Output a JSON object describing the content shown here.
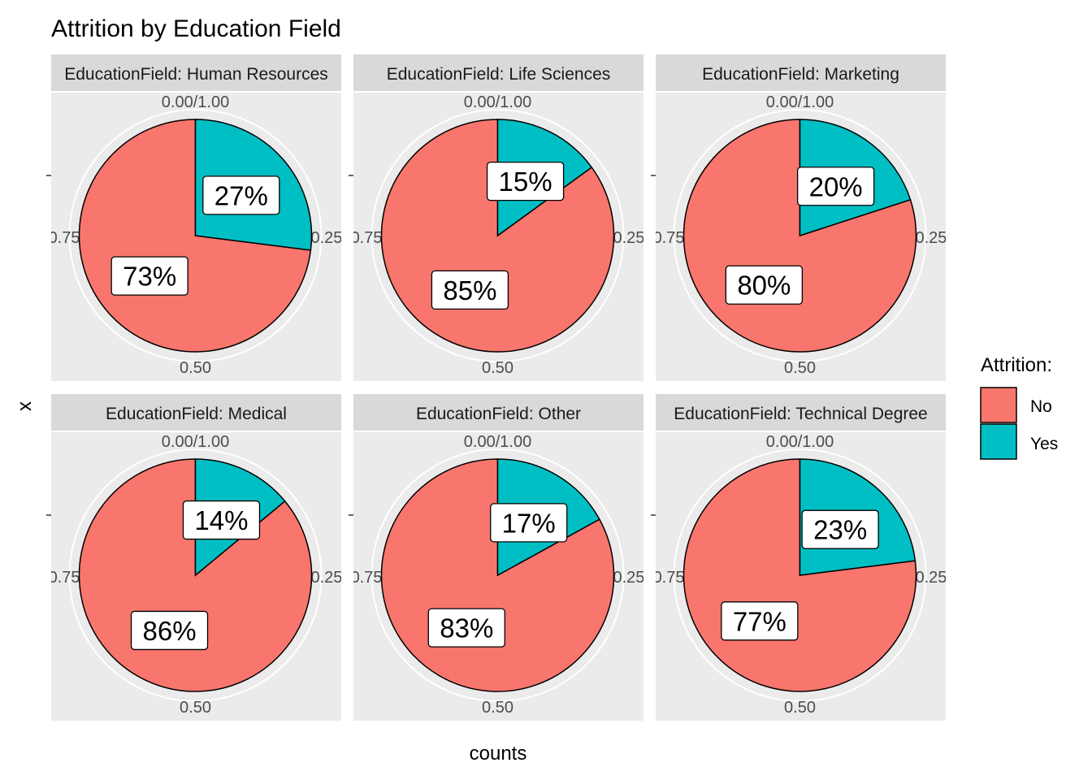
{
  "chart_data": {
    "type": "pie",
    "title": "Attrition by Education Field",
    "xlabel": "counts",
    "ylabel": "x",
    "theta_ticks": [
      "0.00/1.00",
      "0.25",
      "0.50",
      "0.75"
    ],
    "legend": {
      "title": "Attrition:",
      "position": "right",
      "entries": [
        {
          "name": "No",
          "color": "#F8766D"
        },
        {
          "name": "Yes",
          "color": "#00BFC4"
        }
      ]
    },
    "categories": [
      "No",
      "Yes"
    ],
    "facets": [
      {
        "strip": "EducationField: Human Resources",
        "values": [
          73,
          27
        ],
        "labels": [
          "73%",
          "27%"
        ]
      },
      {
        "strip": "EducationField: Life Sciences",
        "values": [
          85,
          15
        ],
        "labels": [
          "85%",
          "15%"
        ]
      },
      {
        "strip": "EducationField: Marketing",
        "values": [
          80,
          20
        ],
        "labels": [
          "80%",
          "20%"
        ]
      },
      {
        "strip": "EducationField: Medical",
        "values": [
          86,
          14
        ],
        "labels": [
          "86%",
          "14%"
        ]
      },
      {
        "strip": "EducationField: Other",
        "values": [
          83,
          17
        ],
        "labels": [
          "83%",
          "17%"
        ]
      },
      {
        "strip": "EducationField: Technical Degree",
        "values": [
          77,
          23
        ],
        "labels": [
          "77%",
          "23%"
        ]
      }
    ]
  }
}
